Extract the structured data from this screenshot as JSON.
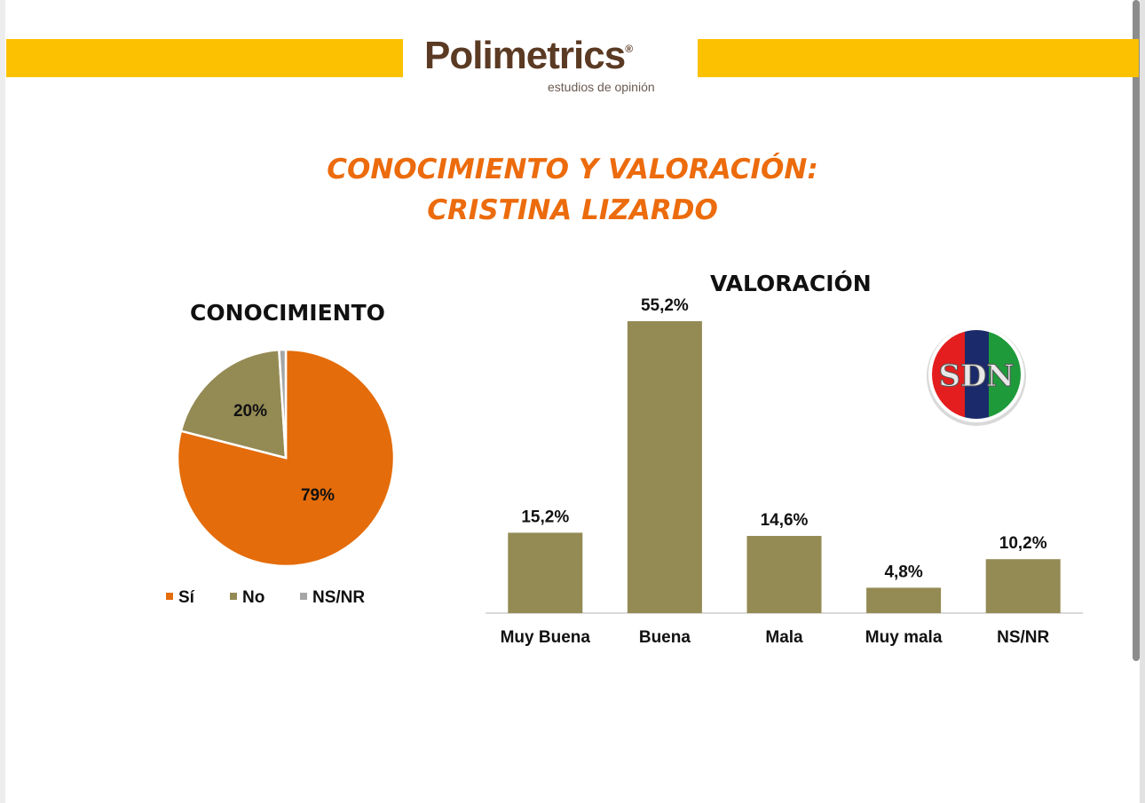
{
  "header": {
    "logo_text": "Polimetrics",
    "logo_reg": "®",
    "logo_tagline": "estudios de opinión",
    "band_color": "#fcc100"
  },
  "title": {
    "line1": "CONOCIMIENTO Y VALORACIÓN:",
    "line2": "CRISTINA LIZARDO",
    "color": "#ec6b0c"
  },
  "watermark": {
    "text": "SDN",
    "colors": [
      "#e41e1e",
      "#1b2a6b",
      "#1f9a3a"
    ]
  },
  "chart_data": [
    {
      "type": "pie",
      "title": "CONOCIMIENTO",
      "categories": [
        "Sí",
        "No",
        "NS/NR"
      ],
      "values": [
        79,
        20,
        1
      ],
      "labels": [
        "79%",
        "20%",
        ""
      ],
      "colors": [
        "#e46c0a",
        "#948a54",
        "#a6a6a6"
      ],
      "legend": "bottom"
    },
    {
      "type": "bar",
      "title": "VALORACIÓN",
      "categories": [
        "Muy Buena",
        "Buena",
        "Mala",
        "Muy mala",
        "NS/NR"
      ],
      "values": [
        15.2,
        55.2,
        14.6,
        4.8,
        10.2
      ],
      "labels": [
        "15,2%",
        "55,2%",
        "14,6%",
        "4,8%",
        "10,2%"
      ],
      "color": "#948a54",
      "ylim": [
        0,
        56
      ],
      "grid": false
    }
  ]
}
